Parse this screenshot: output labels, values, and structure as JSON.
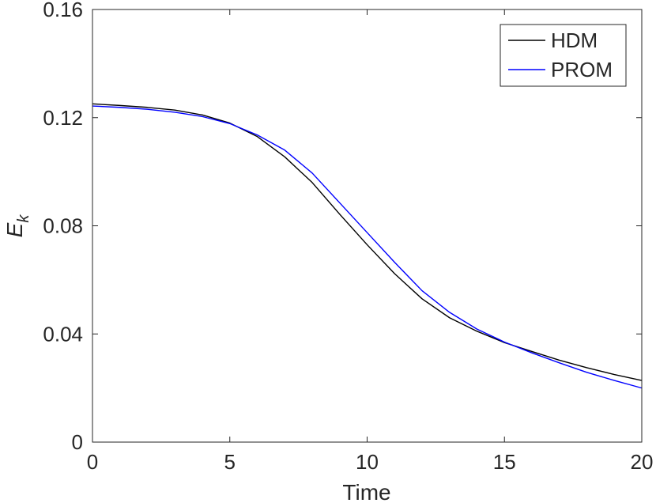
{
  "chart_data": {
    "type": "line",
    "xlabel": "Time",
    "ylabel_main": "E",
    "ylabel_sub": "k",
    "xlim": [
      0,
      20
    ],
    "ylim": [
      0,
      0.16
    ],
    "x_ticks": [
      "0",
      "5",
      "10",
      "15",
      "20"
    ],
    "y_ticks": [
      "0",
      "0.04",
      "0.08",
      "0.12",
      "0.16"
    ],
    "x_tick_values": [
      0,
      5,
      10,
      15,
      20
    ],
    "y_tick_values": [
      0,
      0.04,
      0.08,
      0.12,
      0.16
    ],
    "grid": false,
    "legend_position": "top-right",
    "series": [
      {
        "name": "HDM",
        "color": "#000000",
        "x": [
          0,
          1,
          2,
          3,
          4,
          5,
          6,
          7,
          8,
          9,
          10,
          11,
          12,
          13,
          14,
          15,
          16,
          17,
          18,
          19,
          20
        ],
        "y": [
          0.1251,
          0.1245,
          0.1238,
          0.1228,
          0.121,
          0.118,
          0.113,
          0.1055,
          0.096,
          0.0843,
          0.073,
          0.0623,
          0.053,
          0.046,
          0.041,
          0.0368,
          0.0335,
          0.0303,
          0.0275,
          0.025,
          0.0228
        ]
      },
      {
        "name": "PROM",
        "color": "#0000ff",
        "x": [
          0,
          1,
          2,
          3,
          4,
          5,
          6,
          7,
          8,
          9,
          10,
          11,
          12,
          13,
          14,
          15,
          16,
          17,
          18,
          19,
          20
        ],
        "y": [
          0.1243,
          0.1238,
          0.1231,
          0.122,
          0.1204,
          0.1178,
          0.1136,
          0.108,
          0.0995,
          0.0885,
          0.0775,
          0.0665,
          0.056,
          0.048,
          0.0418,
          0.037,
          0.033,
          0.0293,
          0.0258,
          0.0228,
          0.02
        ]
      }
    ]
  }
}
